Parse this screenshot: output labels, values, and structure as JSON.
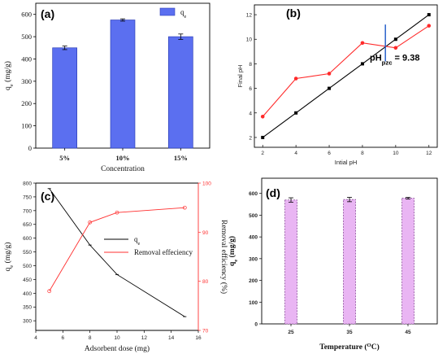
{
  "chart_data": [
    {
      "panel": "(a)",
      "type": "bar",
      "categories": [
        "5%",
        "10%",
        "15%"
      ],
      "series": [
        {
          "name": "qe",
          "values": [
            450,
            575,
            500
          ],
          "errors": [
            8,
            5,
            12
          ]
        }
      ],
      "xlabel": "Concentration",
      "ylabel": "qe (mg/g)",
      "ylim": [
        0,
        650
      ],
      "yticks": [
        0,
        100,
        200,
        300,
        400,
        500,
        600
      ],
      "legend": "top-right",
      "colors": {
        "bar": "#5b6ff0",
        "edge": "#2d3fb8"
      }
    },
    {
      "panel": "(b)",
      "type": "line",
      "x": [
        2,
        4,
        6,
        8,
        10,
        12
      ],
      "series": [
        {
          "name": "initial",
          "values": [
            2,
            4,
            6,
            8,
            10,
            12
          ],
          "color": "#000000"
        },
        {
          "name": "final",
          "values": [
            3.7,
            6.8,
            7.2,
            9.7,
            9.3,
            11.1
          ],
          "color": "#ff2a2a"
        }
      ],
      "xlabel": "Intial pH",
      "ylabel": "Final pH",
      "xlim": [
        1.5,
        12.5
      ],
      "ylim": [
        1.2,
        12.8
      ],
      "xticks": [
        2,
        4,
        6,
        8,
        10,
        12
      ],
      "yticks": [
        2,
        4,
        6,
        8,
        10,
        12
      ],
      "annotation": {
        "text": "pHpzc = 9.38",
        "main": "pH",
        "sub": "pzc",
        "tail": " = 9.38",
        "x": 9.38,
        "line_ylim": [
          8.2,
          11.2
        ],
        "color": "#1a56c8"
      }
    },
    {
      "panel": "(c)",
      "type": "line",
      "x": [
        5,
        8,
        10,
        15
      ],
      "series": [
        {
          "name": "qe",
          "axis": "left",
          "values": [
            780,
            575,
            468,
            315
          ],
          "color": "#000000"
        },
        {
          "name": "Removal effeciency",
          "axis": "right",
          "values": [
            78,
            92,
            94,
            95
          ],
          "color": "#ff3030"
        }
      ],
      "xlabel": "Adsorbent dose (mg)",
      "ylabel": "qe (mg/g)",
      "ylabel_right": "Removal efficiency (%)",
      "xlim": [
        4,
        16
      ],
      "ylim": [
        265,
        800
      ],
      "ylim_right": [
        70,
        100
      ],
      "xticks": [
        4,
        6,
        8,
        10,
        12,
        14,
        16
      ],
      "yticks": [
        300,
        350,
        400,
        450,
        500,
        550,
        600,
        650,
        700,
        750,
        800
      ],
      "yticks_right": [
        70,
        80,
        90,
        100
      ],
      "legend": "center-right"
    },
    {
      "panel": "(d)",
      "type": "bar",
      "categories": [
        "25",
        "35",
        "45"
      ],
      "series": [
        {
          "name": "qe",
          "values": [
            570,
            572,
            578
          ],
          "errors": [
            10,
            10,
            4
          ]
        }
      ],
      "xlabel": "Temperature (OC)",
      "xlabel_main": "Temperature (",
      "xlabel_sup": "O",
      "xlabel_tail": "C)",
      "ylabel": "qe (mg/g)",
      "ylim": [
        0,
        670
      ],
      "yticks": [
        0,
        100,
        200,
        300,
        400,
        500,
        600
      ],
      "colors": {
        "bar": "#e9b5f3",
        "edge": "#8a4a9a"
      }
    }
  ]
}
